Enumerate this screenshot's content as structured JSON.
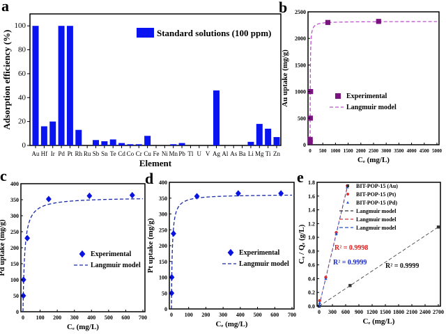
{
  "chart_data": [
    {
      "panel": "a",
      "type": "bar",
      "xlabel": "Element",
      "ylabel": "Adsorption efficiency (%)",
      "ylim": [
        0,
        110
      ],
      "yticks": [
        0,
        20,
        40,
        60,
        80,
        100
      ],
      "legend": {
        "label": "Standard solutions (100 ppm)",
        "placement": "top-right"
      },
      "color": "#0a14f0",
      "categories": [
        "Au",
        "Hf",
        "Ir",
        "Pd",
        "Pt",
        "Rh",
        "Ru",
        "Sb",
        "Sn",
        "Te",
        "Cd",
        "Co",
        "Cr",
        "Cu",
        "Fe",
        "Ni",
        "Mn",
        "Pb",
        "Tl",
        "U",
        "V",
        "Ag",
        "Al",
        "As",
        "Ba",
        "Li",
        "Mg",
        "Ti",
        "Zn"
      ],
      "values": [
        100,
        16,
        20,
        100,
        100,
        13,
        0,
        4.5,
        3.5,
        5,
        2,
        1,
        1,
        8,
        0,
        0,
        1,
        2,
        0,
        0,
        0,
        46,
        0,
        0,
        0,
        3,
        18,
        14,
        7
      ]
    },
    {
      "panel": "b",
      "type": "scatter",
      "xlabel": "Cₑ (mg/L)",
      "ylabel": "Au uptake (mg/g)",
      "xlim": [
        0,
        5000
      ],
      "ylim": [
        0,
        2500
      ],
      "xticks": [
        0,
        500,
        1000,
        1500,
        2000,
        2500,
        3000,
        3500,
        4000,
        4500,
        5000
      ],
      "yticks": [
        0,
        500,
        1000,
        1500,
        2000,
        2500
      ],
      "legend_placement": "center-right",
      "series": [
        {
          "name": "Experimental",
          "marker": "square",
          "color": "#7a1380",
          "x": [
            5,
            5,
            10,
            20,
            700,
            2700
          ],
          "y": [
            50,
            100,
            500,
            1000,
            2300,
            2320
          ]
        },
        {
          "name": "Langmuir model",
          "line": "dashed",
          "color": "#c050d0",
          "model": {
            "qmax": 2320,
            "K": 0.15
          }
        }
      ]
    },
    {
      "panel": "c",
      "type": "scatter",
      "xlabel": "Cₑ (mg/L)",
      "ylabel": "Pd uptake (mg/g)",
      "xlim": [
        0,
        700
      ],
      "ylim": [
        0,
        400
      ],
      "xticks": [
        0,
        100,
        200,
        300,
        400,
        500,
        600,
        700
      ],
      "yticks": [
        0,
        50,
        100,
        150,
        200,
        250,
        300,
        350,
        400
      ],
      "legend_placement": "center-right",
      "series": [
        {
          "name": "Experimental",
          "marker": "diamond",
          "color": "#0a14e0",
          "x": [
            2,
            3,
            25,
            150,
            388,
            638
          ],
          "y": [
            50,
            100,
            230,
            352,
            362,
            364
          ]
        },
        {
          "name": "Langmuir model",
          "line": "dashed",
          "color": "#1a2aa0",
          "model": {
            "qmax": 358,
            "K": 0.1
          }
        }
      ]
    },
    {
      "panel": "d",
      "type": "scatter",
      "xlabel": "Cₑ (mg/L)",
      "ylabel": "Pt uptake (mg/g)",
      "xlim": [
        0,
        700
      ],
      "ylim": [
        0,
        400
      ],
      "xticks": [
        0,
        100,
        200,
        300,
        400,
        500,
        600,
        700
      ],
      "yticks": [
        0,
        50,
        100,
        150,
        200,
        250,
        300,
        350,
        400
      ],
      "legend_placement": "center-right",
      "series": [
        {
          "name": "Experimental",
          "marker": "diamond",
          "color": "#0a14e0",
          "x": [
            1,
            2,
            12,
            148,
            388,
            636
          ],
          "y": [
            50,
            100,
            238,
            356,
            365,
            365
          ]
        },
        {
          "name": "Langmuir model",
          "line": "dashed",
          "color": "#1a2aa0",
          "model": {
            "qmax": 362,
            "K": 0.2
          }
        }
      ]
    },
    {
      "panel": "e",
      "type": "scatter",
      "xlabel": "Cₑ (mg/L)",
      "ylabel": "Cₑ / Qₑ (g/L)",
      "xlim": [
        0,
        2700
      ],
      "ylim": [
        0,
        1.8
      ],
      "xticks": [
        0,
        300,
        600,
        900,
        1200,
        1500,
        1800,
        2100,
        2400,
        2700
      ],
      "yticks": [
        0.0,
        0.2,
        0.4,
        0.6,
        0.8,
        1.0,
        1.2,
        1.4,
        1.6,
        1.8
      ],
      "legend_placement": "top-right",
      "series": [
        {
          "name": "BIT-POP-15 (Au)",
          "marker": "square",
          "color": "#333333",
          "x": [
            0,
            700,
            2700
          ],
          "y": [
            0,
            0.3,
            1.15
          ]
        },
        {
          "name": "BIT-POP-15 (Pt)",
          "marker": "circle",
          "color": "#e03030",
          "x": [
            10,
            150,
            388,
            638
          ],
          "y": [
            0.08,
            0.42,
            1.07,
            1.75
          ]
        },
        {
          "name": "BIT-POP-15 (Pd)",
          "marker": "triangle",
          "color": "#2050d0",
          "x": [
            2,
            12,
            150,
            388,
            636
          ],
          "y": [
            0.01,
            0.05,
            0.4,
            1.05,
            1.73
          ]
        },
        {
          "name": "Langmuir model",
          "line": "dashed",
          "color": "#333333",
          "fit": [
            0,
            2700,
            0,
            1.15
          ]
        },
        {
          "name": "Langmuir model",
          "line": "dashed",
          "color": "#e03030",
          "fit": [
            0,
            640,
            0.01,
            1.75
          ]
        },
        {
          "name": "Langmuir model",
          "line": "dashed",
          "color": "#2050d0",
          "fit": [
            0,
            640,
            0.0,
            1.73
          ]
        }
      ],
      "annotations": [
        {
          "text": "R² = 0.9998",
          "color": "#e02020"
        },
        {
          "text": "R² = 0.9999",
          "color": "#1a2ad0"
        },
        {
          "text": "R² = 0.9999",
          "color": "#111111"
        }
      ]
    }
  ]
}
